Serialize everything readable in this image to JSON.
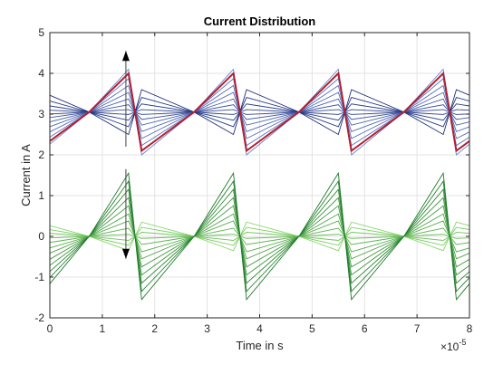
{
  "chart_data": {
    "type": "line",
    "title": "Current Distribution",
    "xlabel": "Time in s",
    "ylabel": "Current in A",
    "x_exponent_base": "×10",
    "x_exponent_power": "-5",
    "xlim": [
      0,
      8
    ],
    "ylim": [
      -2,
      5
    ],
    "xticks": [
      0,
      1,
      2,
      3,
      4,
      5,
      6,
      7,
      8
    ],
    "yticks": [
      -2,
      -1,
      0,
      1,
      2,
      3,
      4,
      5
    ],
    "grid": true,
    "legend": "none",
    "waveform": {
      "period": 2,
      "center_x": 0.75,
      "peak_x": 1.5,
      "trough_x": 1.75
    },
    "series_groups": [
      {
        "role": "upper",
        "color_from": "#6a86d0",
        "color_to": "#1f2f7a",
        "offset": 3.05,
        "amplitudes": [
          1.05,
          0.95,
          0.82,
          0.65,
          0.48,
          0.32,
          0.18,
          0.06,
          -0.06,
          -0.2,
          -0.36,
          -0.55
        ]
      },
      {
        "role": "highlight",
        "color": "#b22030",
        "offset": 3.05,
        "amplitudes": [
          0.95
        ]
      },
      {
        "role": "lower",
        "color_from": "#86d66a",
        "color_to": "#1e7a2a",
        "offset": 0.0,
        "amplitudes": [
          -0.35,
          -0.22,
          -0.1,
          0.05,
          0.2,
          0.38,
          0.55,
          0.75,
          0.95,
          1.15,
          1.35,
          1.55
        ]
      }
    ],
    "annotations": [
      {
        "type": "double-arrow",
        "x": 1.45,
        "y_from": 2.2,
        "y_to": 4.55
      },
      {
        "type": "double-arrow",
        "x": 1.45,
        "y_from": 1.65,
        "y_to": -0.55
      }
    ]
  }
}
